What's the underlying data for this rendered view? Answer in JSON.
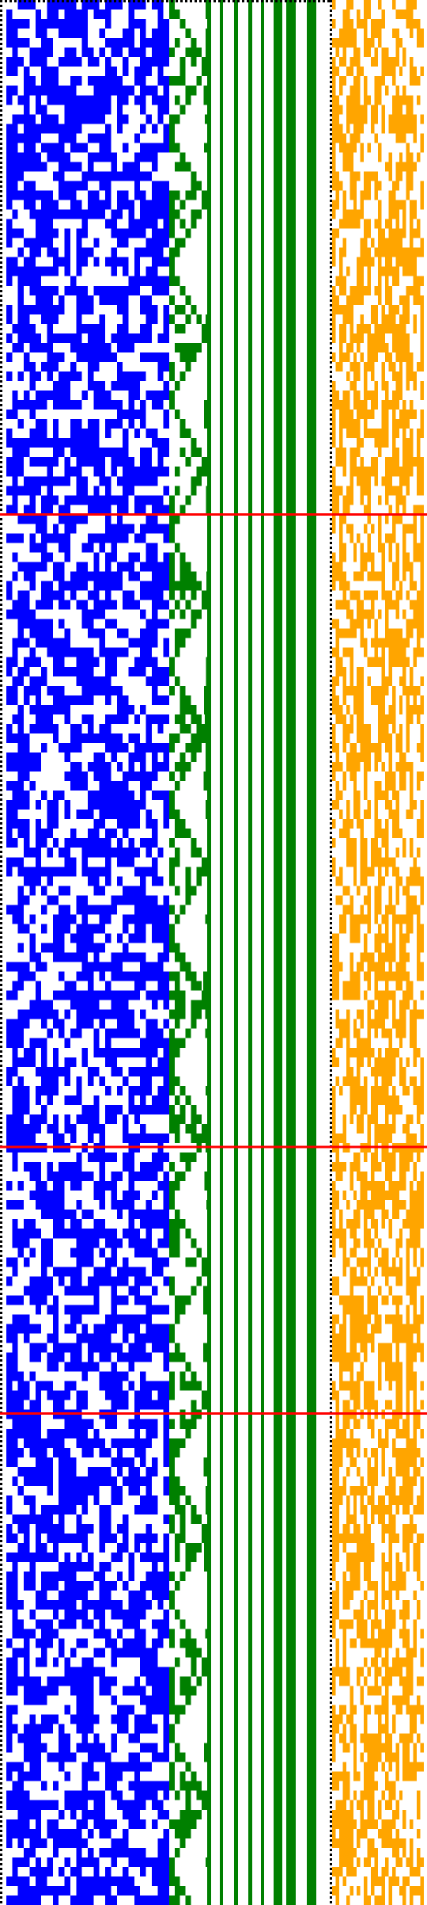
{
  "figure": {
    "background": "#ffffff",
    "row_count": 200,
    "colors": {
      "noise_left": "#0000ff",
      "staircase": "#008000",
      "stripes": "#008000",
      "noise_right": "#ffa500",
      "border_dots": "#000000",
      "red_lines": "#ff0000"
    },
    "left_panel": {
      "columns": 28,
      "fill_probability": 0.52
    },
    "staircase": {
      "steps": 7
    },
    "stripes": {
      "count": 8
    },
    "right_panel": {
      "columns": 26,
      "fill_probability": 0.45
    },
    "red_lines": {
      "row_fractions": [
        0.27,
        0.602,
        0.742
      ]
    }
  }
}
